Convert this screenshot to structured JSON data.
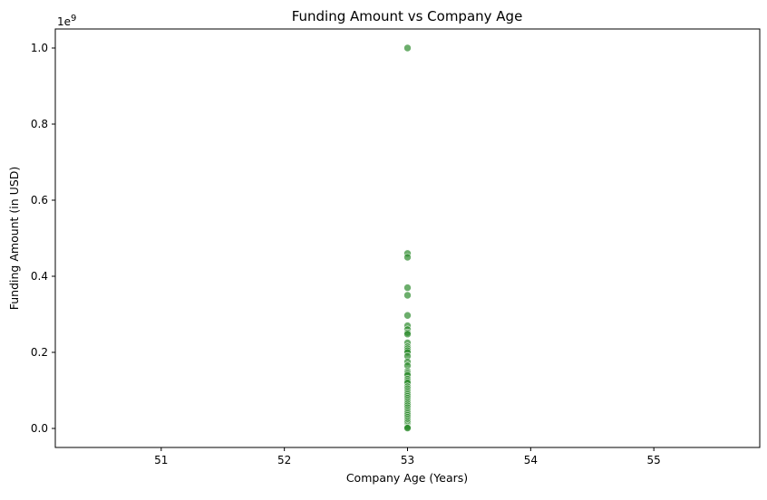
{
  "chart_data": {
    "type": "scatter",
    "title": "Funding Amount vs Company Age",
    "xlabel": "Company Age (Years)",
    "ylabel": "Funding Amount (in USD)",
    "y_offset_label": "1e9",
    "xlim": [
      50.14,
      55.86
    ],
    "ylim": [
      -0.05,
      1.05
    ],
    "y_scale": 1000000000,
    "x_ticks": [
      51,
      52,
      53,
      54,
      55
    ],
    "x_tick_labels": [
      "51",
      "52",
      "53",
      "54",
      "55"
    ],
    "y_ticks": [
      0.0,
      0.2,
      0.4,
      0.6,
      0.8,
      1.0
    ],
    "y_tick_labels": [
      "0.0",
      "0.2",
      "0.4",
      "0.6",
      "0.8",
      "1.0"
    ],
    "grid": false,
    "marker_color": "#2e8b2e",
    "series": [
      {
        "x": [
          53,
          53,
          53,
          53,
          53,
          53,
          53,
          53,
          53,
          53,
          53,
          53,
          53,
          53,
          53,
          53,
          53,
          53,
          53,
          53,
          53,
          53,
          53,
          53,
          53,
          53,
          53,
          53,
          53,
          53,
          53,
          53,
          53,
          53,
          53,
          53,
          53,
          53,
          53,
          53,
          53,
          53,
          53,
          53,
          53,
          53,
          53,
          53
        ],
        "y": [
          1000000000,
          460000000,
          450000000,
          370000000,
          350000000,
          297000000,
          270000000,
          260000000,
          252000000,
          248000000,
          225000000,
          215000000,
          210000000,
          205000000,
          200000000,
          190000000,
          175000000,
          165000000,
          150000000,
          145000000,
          140000000,
          130000000,
          125000000,
          120000000,
          110000000,
          105000000,
          100000000,
          95000000,
          90000000,
          85000000,
          80000000,
          75000000,
          70000000,
          65000000,
          60000000,
          55000000,
          50000000,
          45000000,
          40000000,
          35000000,
          30000000,
          25000000,
          20000000,
          15000000,
          10000000,
          6000000,
          3000000,
          1000000
        ]
      }
    ]
  }
}
